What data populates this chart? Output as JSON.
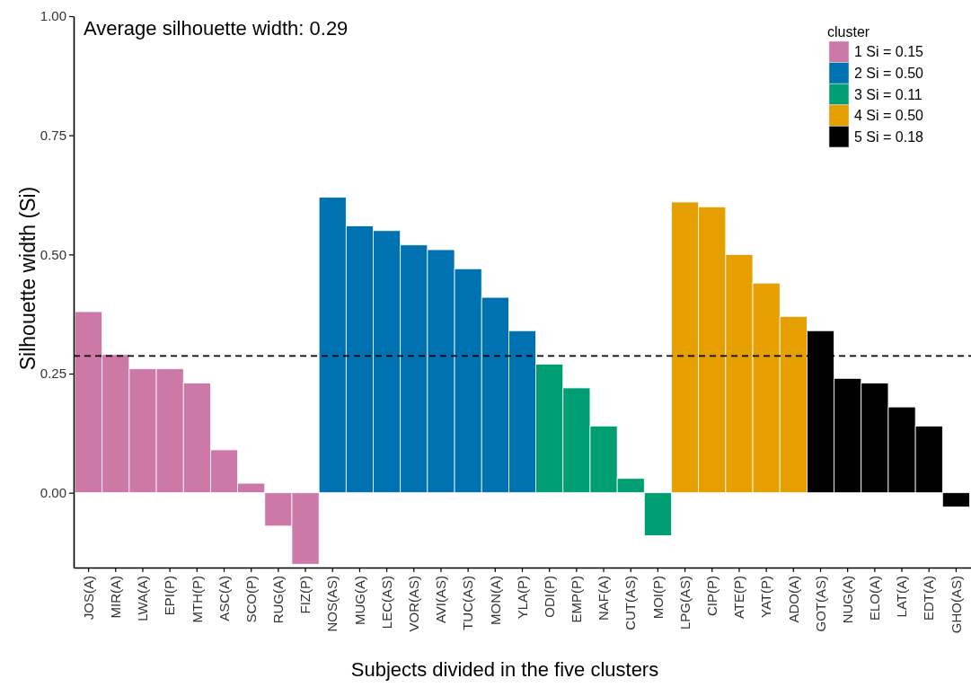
{
  "chart_data": {
    "type": "bar",
    "title": "Average silhouette width: 0.29",
    "xlabel": "Subjects divided in the five clusters",
    "ylabel": "Silhouette width (Si)",
    "legend_title": "cluster",
    "categories": [
      "JOS(A)",
      "MIR(A)",
      "LWA(A)",
      "EPI(P)",
      "MTH(P)",
      "ASC(A)",
      "SCO(P)",
      "RUG(A)",
      "FIZ(P)",
      "NOS(AS)",
      "MUG(A)",
      "LEC(AS)",
      "VOR(AS)",
      "AVI(AS)",
      "TUC(AS)",
      "MON(A)",
      "YLA(P)",
      "ODI(P)",
      "EMP(P)",
      "NAF(A)",
      "CUT(AS)",
      "MOI(P)",
      "LPG(AS)",
      "CIP(P)",
      "ATE(P)",
      "YAT(P)",
      "ADO(A)",
      "GOT(AS)",
      "NUG(A)",
      "ELO(A)",
      "LAT(A)",
      "EDT(A)",
      "GHO(AS)"
    ],
    "series": [
      {
        "name": "1 Si = 0.15",
        "color": "#cc79a7",
        "values": [
          0.38,
          0.29,
          0.26,
          0.26,
          0.23,
          0.09,
          0.02,
          -0.07,
          -0.15,
          null,
          null,
          null,
          null,
          null,
          null,
          null,
          null,
          null,
          null,
          null,
          null,
          null,
          null,
          null,
          null,
          null,
          null,
          null,
          null,
          null,
          null,
          null,
          null
        ]
      },
      {
        "name": "2 Si = 0.50",
        "color": "#0072b2",
        "values": [
          null,
          null,
          null,
          null,
          null,
          null,
          null,
          null,
          null,
          0.62,
          0.56,
          0.55,
          0.52,
          0.51,
          0.47,
          0.41,
          0.34,
          null,
          null,
          null,
          null,
          null,
          null,
          null,
          null,
          null,
          null,
          null,
          null,
          null,
          null,
          null,
          null
        ]
      },
      {
        "name": "3 Si = 0.11",
        "color": "#009e73",
        "values": [
          null,
          null,
          null,
          null,
          null,
          null,
          null,
          null,
          null,
          null,
          null,
          null,
          null,
          null,
          null,
          null,
          null,
          0.27,
          0.22,
          0.14,
          0.03,
          -0.09,
          null,
          null,
          null,
          null,
          null,
          null,
          null,
          null,
          null,
          null,
          null
        ]
      },
      {
        "name": "4 Si = 0.50",
        "color": "#e69f00",
        "values": [
          null,
          null,
          null,
          null,
          null,
          null,
          null,
          null,
          null,
          null,
          null,
          null,
          null,
          null,
          null,
          null,
          null,
          null,
          null,
          null,
          null,
          null,
          0.61,
          0.6,
          0.5,
          0.44,
          0.37,
          null,
          null,
          null,
          null,
          null,
          null
        ]
      },
      {
        "name": "5 Si = 0.18",
        "color": "#000000",
        "values": [
          null,
          null,
          null,
          null,
          null,
          null,
          null,
          null,
          null,
          null,
          null,
          null,
          null,
          null,
          null,
          null,
          null,
          null,
          null,
          null,
          null,
          null,
          null,
          null,
          null,
          null,
          null,
          0.34,
          0.24,
          0.23,
          0.18,
          0.14,
          -0.03
        ]
      }
    ],
    "stacked": true,
    "ylim": [
      -0.157,
      1.0
    ],
    "yticks": [
      {
        "value": 0,
        "label": "0.00"
      },
      0.25,
      {
        "value": 0.5,
        "label": "0.50"
      },
      0.75,
      {
        "value": 1,
        "label": "1.00"
      }
    ],
    "ref_lines": [
      {
        "axis": "y",
        "value": 0.287,
        "color": "#000000",
        "line_style": "dashed"
      }
    ],
    "grid": false,
    "legend": "top right"
  }
}
